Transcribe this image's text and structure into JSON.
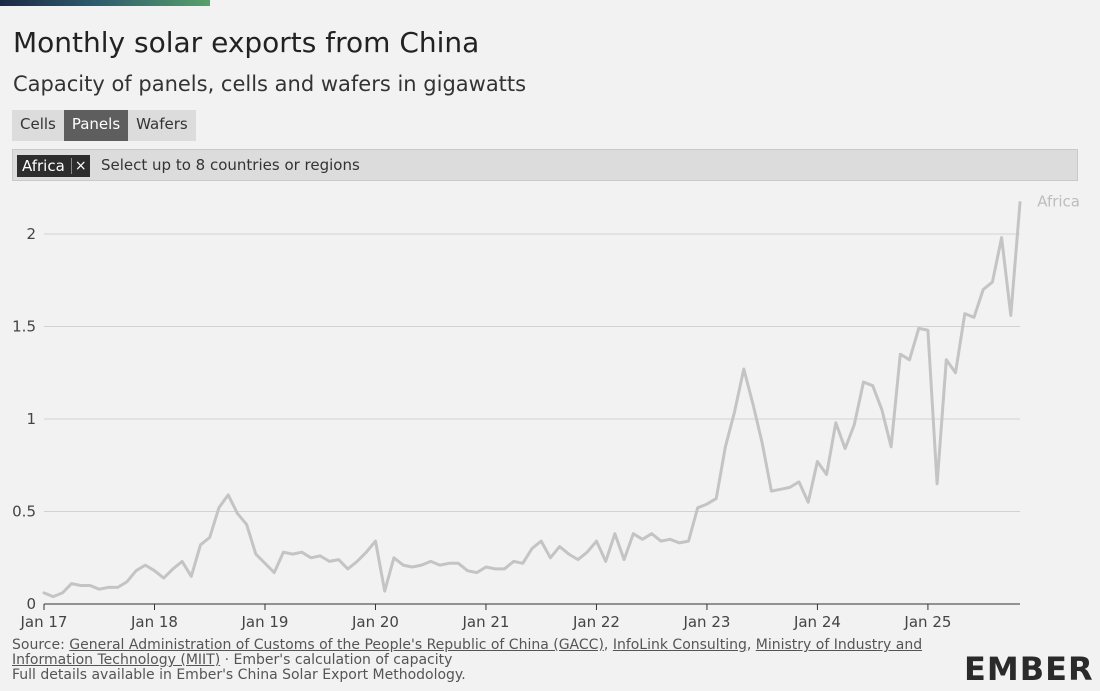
{
  "header": {
    "title": "Monthly solar exports from China",
    "subtitle": "Capacity of panels, cells and wafers in gigawatts"
  },
  "tabs": [
    "Cells",
    "Panels",
    "Wafers"
  ],
  "active_tab": "Panels",
  "filter": {
    "chip_label": "Africa",
    "chip_remove": "×",
    "placeholder": "Select up to 8 countries or regions"
  },
  "footer": {
    "source_prefix": "Source: ",
    "source_gacc": "General Administration of Customs of the People's Republic of China (GACC)",
    "sep1": ", ",
    "source_infolink": "InfoLink Consulting",
    "sep2": ", ",
    "source_miit": "Ministry of Industry and Information Technology (MIIT)",
    "source_suffix": " · Ember's calculation of capacity",
    "details": "Full details available in Ember's China Solar Export Methodology.",
    "logo": "EMBER"
  },
  "colors": {
    "line": "#c4c4c4",
    "grid": "#d2d2d2",
    "active_tab": "#5e5e5e",
    "brand_green": "#58a06a"
  },
  "chart_data": {
    "type": "line",
    "x_tick_labels": [
      "Jan 17",
      "Jan 18",
      "Jan 19",
      "Jan 20",
      "Jan 21",
      "Jan 22",
      "Jan 23",
      "Jan 24",
      "Jan 25"
    ],
    "y_tick_labels": [
      "0",
      "0.5",
      "1",
      "1.5",
      "2"
    ],
    "y_ticks": [
      0,
      0.5,
      1,
      1.5,
      2
    ],
    "ylim": [
      0,
      2.2
    ],
    "grid": true,
    "series": [
      {
        "name": "Africa",
        "x_start": "2017-01",
        "values": [
          0.06,
          0.04,
          0.06,
          0.11,
          0.1,
          0.1,
          0.08,
          0.09,
          0.09,
          0.12,
          0.18,
          0.21,
          0.18,
          0.14,
          0.19,
          0.23,
          0.15,
          0.32,
          0.36,
          0.52,
          0.59,
          0.49,
          0.43,
          0.27,
          0.22,
          0.17,
          0.28,
          0.27,
          0.28,
          0.25,
          0.26,
          0.23,
          0.24,
          0.19,
          0.23,
          0.28,
          0.34,
          0.07,
          0.25,
          0.21,
          0.2,
          0.21,
          0.23,
          0.21,
          0.22,
          0.22,
          0.18,
          0.17,
          0.2,
          0.19,
          0.19,
          0.23,
          0.22,
          0.3,
          0.34,
          0.25,
          0.31,
          0.27,
          0.24,
          0.28,
          0.34,
          0.23,
          0.38,
          0.24,
          0.38,
          0.35,
          0.38,
          0.34,
          0.35,
          0.33,
          0.34,
          0.52,
          0.54,
          0.57,
          0.85,
          1.04,
          1.27,
          1.08,
          0.87,
          0.61,
          0.62,
          0.63,
          0.66,
          0.55,
          0.77,
          0.7,
          0.98,
          0.84,
          0.97,
          1.2,
          1.18,
          1.05,
          0.85,
          1.35,
          1.32,
          1.49,
          1.48,
          0.65,
          1.32,
          1.25,
          1.57,
          1.55,
          1.7,
          1.74,
          1.98,
          1.56,
          2.17
        ]
      }
    ]
  }
}
